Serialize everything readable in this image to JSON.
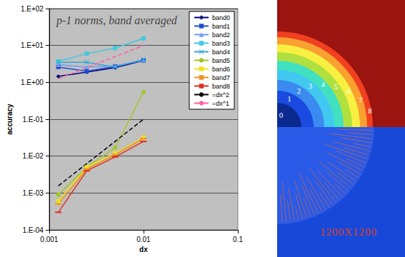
{
  "chart_data": {
    "type": "line",
    "title": "p-1 norms, band averaged",
    "x_label": "dx",
    "y_label": "accuracy",
    "log": true,
    "grid": "y",
    "legend": "upper right",
    "x": [
      0.00125,
      0.0025,
      0.005,
      0.01
    ],
    "xlim": [
      0.001,
      0.1
    ],
    "xticks": [
      0.001,
      0.01,
      0.1
    ],
    "ylim": [
      0.0001,
      100
    ],
    "yticks": [
      {
        "value": 0.0001,
        "label": "1.E-04"
      },
      {
        "value": 0.001,
        "label": "1.E-03"
      },
      {
        "value": 0.01,
        "label": "1.E-02"
      },
      {
        "value": 0.1,
        "label": "1.E-01"
      },
      {
        "value": 1,
        "label": "1.E+00"
      },
      {
        "value": 10,
        "label": "1.E+01"
      },
      {
        "value": 100,
        "label": "1.E+02"
      }
    ],
    "series": [
      {
        "name": "band0",
        "color": "#000080",
        "marker": "diamond",
        "line_style": "solid",
        "values": [
          1.45,
          1.9,
          2.5,
          3.9
        ]
      },
      {
        "name": "band1",
        "color": "#1f4fd0",
        "marker": "square",
        "line_style": "solid",
        "values": [
          2.6,
          2.0,
          2.7,
          3.9
        ]
      },
      {
        "name": "band2",
        "color": "#6f9cf0",
        "marker": "triangle",
        "line_style": "solid",
        "values": [
          3.0,
          2.6,
          2.8,
          4.0
        ]
      },
      {
        "name": "band3",
        "color": "#40c8e0",
        "marker": "square",
        "line_style": "solid",
        "values": [
          3.7,
          6.0,
          8.5,
          15.5
        ]
      },
      {
        "name": "band4",
        "color": "#30a8d8",
        "marker": "x",
        "line_style": "solid",
        "values": [
          3.5,
          3.5,
          2.6,
          4.2
        ]
      },
      {
        "name": "band5",
        "color": "#a0c820",
        "marker": "circle",
        "line_style": "solid",
        "values": [
          0.0009,
          0.005,
          0.017,
          0.55
        ]
      },
      {
        "name": "band6",
        "color": "#f0e020",
        "marker": "square",
        "line_style": "solid",
        "values": [
          0.0006,
          0.005,
          0.012,
          0.032
        ]
      },
      {
        "name": "band7",
        "color": "#f09020",
        "marker": "dash",
        "line_style": "solid",
        "values": [
          0.0005,
          0.0045,
          0.011,
          0.03
        ]
      },
      {
        "name": "band8",
        "color": "#e03020",
        "marker": "dash",
        "line_style": "solid",
        "values": [
          0.0003,
          0.004,
          0.0095,
          0.025
        ]
      },
      {
        "name": "=dx^2",
        "color": "#000000",
        "marker": "none",
        "line_style": "dashed",
        "values": [
          0.0015625,
          0.00625,
          0.025,
          0.1
        ]
      },
      {
        "name": "=dx^1",
        "color": "#ff5fa0",
        "marker": "none",
        "line_style": "dashed",
        "values": [
          1.25,
          2.5,
          5,
          10
        ]
      }
    ]
  },
  "image": {
    "ring_labels": [
      "0",
      "1",
      "2",
      "3",
      "4",
      "5",
      "6",
      "7",
      "8"
    ],
    "caption": "1200X1200"
  }
}
